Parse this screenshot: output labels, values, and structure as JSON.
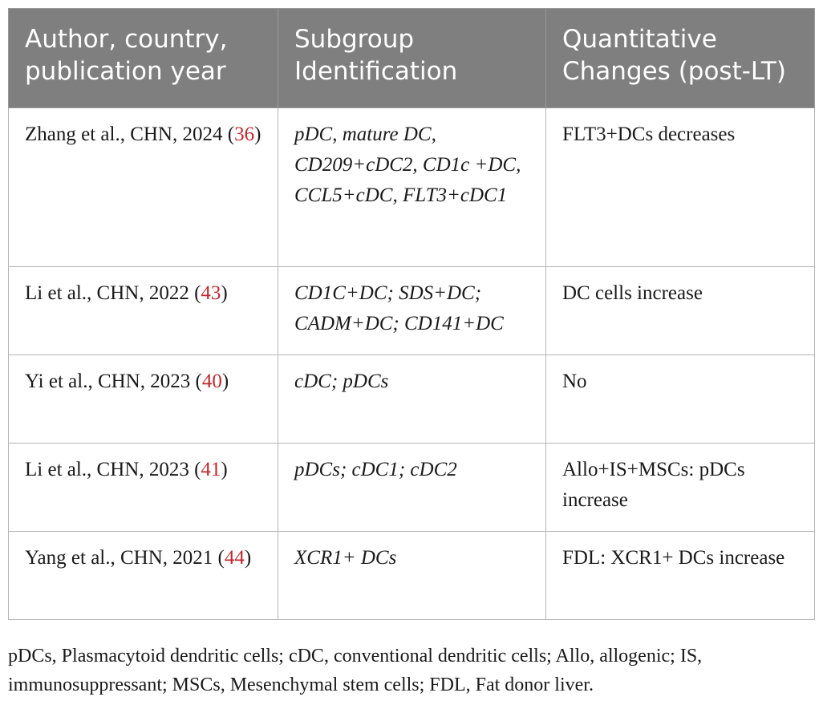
{
  "table": {
    "headers": [
      "Author, country, publication year",
      "Subgroup Identification",
      "Quantitative Changes (post-LT)"
    ],
    "rows": [
      {
        "author": "Zhang et al., CHN, 2024 (",
        "ref": "36",
        "author_close": ")",
        "subgroup": "pDC, mature DC, CD209+cDC2, CD1c +DC, CCL5+cDC, FLT3+cDC1",
        "change": "FLT3+DCs decreases"
      },
      {
        "author": "Li et al., CHN, 2022 (",
        "ref": "43",
        "author_close": ")",
        "subgroup": "CD1C+DC; SDS+DC; CADM+DC; CD141+DC",
        "change": "DC cells increase"
      },
      {
        "author": "Yi et al., CHN, 2023 (",
        "ref": "40",
        "author_close": ")",
        "subgroup": "cDC; pDCs",
        "change": "No"
      },
      {
        "author": "Li et al., CHN, 2023 (",
        "ref": "41",
        "author_close": ")",
        "subgroup": "pDCs; cDC1; cDC2",
        "change": "Allo+IS+MSCs: pDCs increase"
      },
      {
        "author": "Yang et al., CHN, 2021 (",
        "ref": "44",
        "author_close": ")",
        "subgroup": "XCR1+ DCs",
        "change": "FDL: XCR1+ DCs increase"
      }
    ]
  },
  "footnote": "pDCs, Plasmacytoid dendritic cells; cDC, conventional dendritic cells; Allo, allogenic; IS, immunosuppressant; MSCs, Mesenchymal stem cells; FDL, Fat donor liver.",
  "colors": {
    "header_bg": "#7f7f7f",
    "header_text": "#ffffff",
    "reference_link": "#c0282d"
  }
}
